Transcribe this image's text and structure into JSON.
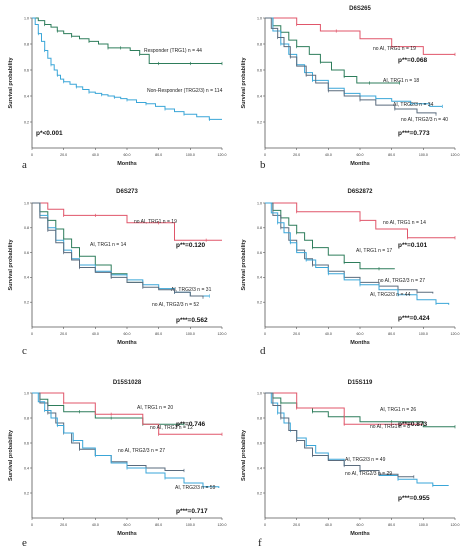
{
  "chart_data": [
    {
      "type": "line",
      "panel_letter": "a",
      "title": "",
      "xlabel": "Months",
      "ylabel": "Survival probability",
      "xlim": [
        0,
        120
      ],
      "ylim": [
        0,
        1.0
      ],
      "xticks": [
        "0",
        "20.0",
        "40.0",
        "60.0",
        "80.0",
        "100.0",
        "120.0"
      ],
      "yticks": [
        "0.2",
        "0.4",
        "0.6",
        "0.8",
        "1.0"
      ],
      "series": [
        {
          "name": "Responder (TRG1) n = 44",
          "color": "#2e7d5b",
          "x": [
            0,
            4,
            8,
            12,
            16,
            20,
            25,
            30,
            36,
            42,
            48,
            52,
            56,
            62,
            68,
            74,
            80,
            90,
            100,
            112,
            120
          ],
          "y": [
            1.0,
            0.98,
            0.95,
            0.93,
            0.9,
            0.88,
            0.86,
            0.84,
            0.82,
            0.8,
            0.77,
            0.77,
            0.77,
            0.75,
            0.72,
            0.65,
            0.65,
            0.65,
            0.65,
            0.65,
            0.65
          ]
        },
        {
          "name": "Non-Responder (TRG2/3) n = 114",
          "color": "#3aa6d8",
          "x": [
            0,
            2,
            4,
            6,
            8,
            10,
            12,
            14,
            16,
            18,
            20,
            24,
            28,
            32,
            36,
            40,
            44,
            48,
            52,
            56,
            60,
            66,
            72,
            78,
            84,
            90,
            96,
            104,
            112,
            120
          ],
          "y": [
            1.0,
            0.95,
            0.88,
            0.82,
            0.75,
            0.69,
            0.64,
            0.6,
            0.56,
            0.53,
            0.51,
            0.49,
            0.47,
            0.45,
            0.43,
            0.42,
            0.41,
            0.4,
            0.39,
            0.38,
            0.37,
            0.35,
            0.34,
            0.32,
            0.3,
            0.28,
            0.26,
            0.24,
            0.22,
            0.22
          ]
        }
      ],
      "annotations": [
        {
          "text": "p*<0.001"
        }
      ]
    },
    {
      "type": "line",
      "panel_letter": "b",
      "title": "D6S265",
      "xlabel": "Months",
      "ylabel": "Survival probability",
      "xlim": [
        0,
        120
      ],
      "ylim": [
        0,
        1.0
      ],
      "xticks": [
        "0",
        "20.0",
        "40.0",
        "60.0",
        "80.0",
        "100.0",
        "120.0"
      ],
      "yticks": [
        "0.2",
        "0.4",
        "0.6",
        "0.8",
        "1.0"
      ],
      "series": [
        {
          "name": "no AI, TRG1 n = 19",
          "color": "#e0566a",
          "x": [
            0,
            15,
            20,
            35,
            45,
            60,
            80,
            100,
            120
          ],
          "y": [
            1.0,
            1.0,
            0.95,
            0.9,
            0.9,
            0.84,
            0.78,
            0.72,
            0.72
          ]
        },
        {
          "name": "AI, TRG1 n = 18",
          "color": "#2e7d5b",
          "x": [
            0,
            5,
            10,
            15,
            20,
            28,
            35,
            42,
            50,
            58,
            66,
            75,
            85
          ],
          "y": [
            1.0,
            0.94,
            0.89,
            0.83,
            0.78,
            0.72,
            0.66,
            0.6,
            0.55,
            0.5,
            0.5,
            0.5,
            0.5
          ]
        },
        {
          "name": "AI, TRG2/3 n = 34",
          "color": "#3aa6d8",
          "x": [
            0,
            5,
            10,
            15,
            20,
            25,
            30,
            40,
            50,
            60,
            70,
            80,
            92,
            104,
            112
          ],
          "y": [
            1.0,
            0.9,
            0.8,
            0.72,
            0.64,
            0.58,
            0.52,
            0.46,
            0.42,
            0.4,
            0.38,
            0.36,
            0.34,
            0.32,
            0.32
          ]
        },
        {
          "name": "no AI, TRG2/3 n = 40",
          "color": "#5a6b7d",
          "x": [
            0,
            4,
            8,
            12,
            16,
            20,
            26,
            32,
            40,
            50,
            60,
            70,
            82,
            96,
            108
          ],
          "y": [
            1.0,
            0.92,
            0.85,
            0.78,
            0.7,
            0.63,
            0.56,
            0.5,
            0.44,
            0.4,
            0.37,
            0.33,
            0.3,
            0.27,
            0.26
          ]
        }
      ],
      "annotations": [
        {
          "text": "p**=0.068"
        },
        {
          "text": "p***=0.773"
        }
      ]
    },
    {
      "type": "line",
      "panel_letter": "c",
      "title": "D6S273",
      "xlabel": "Months",
      "ylabel": "Survival probability",
      "xlim": [
        0,
        120
      ],
      "ylim": [
        0,
        1.0
      ],
      "xticks": [
        "0",
        "20.0",
        "40.0",
        "60.0",
        "80.0",
        "100.0",
        "120.0"
      ],
      "yticks": [
        "0.2",
        "0.4",
        "0.6",
        "0.8",
        "1.0"
      ],
      "series": [
        {
          "name": "no AI, TRG1 n = 19",
          "color": "#e0566a",
          "x": [
            0,
            10,
            20,
            30,
            40,
            60,
            80,
            90,
            110,
            120
          ],
          "y": [
            1.0,
            0.95,
            0.9,
            0.9,
            0.9,
            0.84,
            0.84,
            0.7,
            0.7,
            0.7
          ]
        },
        {
          "name": "AI, TRG1 n = 14",
          "color": "#2e7d5b",
          "x": [
            0,
            5,
            10,
            15,
            20,
            25,
            30,
            40,
            50,
            60,
            70
          ],
          "y": [
            1.0,
            0.93,
            0.86,
            0.79,
            0.71,
            0.64,
            0.57,
            0.5,
            0.43,
            0.36,
            0.36
          ]
        },
        {
          "name": "AI, TRG2/3 n = 31",
          "color": "#3aa6d8",
          "x": [
            0,
            5,
            10,
            15,
            20,
            25,
            30,
            40,
            50,
            60,
            70,
            80,
            90,
            100,
            112
          ],
          "y": [
            1.0,
            0.9,
            0.8,
            0.7,
            0.62,
            0.55,
            0.5,
            0.45,
            0.42,
            0.38,
            0.34,
            0.31,
            0.28,
            0.25,
            0.25
          ]
        },
        {
          "name": "no AI, TRG2/3 n = 52",
          "color": "#5a6b7d",
          "x": [
            0,
            5,
            10,
            15,
            20,
            25,
            30,
            40,
            50,
            60,
            70,
            80,
            90,
            100,
            108
          ],
          "y": [
            1.0,
            0.88,
            0.78,
            0.68,
            0.6,
            0.54,
            0.48,
            0.44,
            0.4,
            0.36,
            0.32,
            0.3,
            0.28,
            0.25,
            0.24
          ]
        }
      ],
      "annotations": [
        {
          "text": "p**=0.120"
        },
        {
          "text": "p***=0.562"
        }
      ]
    },
    {
      "type": "line",
      "panel_letter": "d",
      "title": "D6S2872",
      "xlabel": "Months",
      "ylabel": "Survival probability",
      "xlim": [
        0,
        120
      ],
      "ylim": [
        0,
        1.0
      ],
      "xticks": [
        "0",
        "20.0",
        "40.0",
        "60.0",
        "80.0",
        "100.0",
        "120.0"
      ],
      "yticks": [
        "0.2",
        "0.4",
        "0.6",
        "0.8",
        "1.0"
      ],
      "series": [
        {
          "name": "no AI, TRG1 n = 14",
          "color": "#e0566a",
          "x": [
            0,
            10,
            20,
            40,
            60,
            70,
            90,
            110,
            120
          ],
          "y": [
            1.0,
            1.0,
            0.93,
            0.93,
            0.86,
            0.79,
            0.72,
            0.72,
            0.72
          ]
        },
        {
          "name": "AI, TRG1 n = 17",
          "color": "#2e7d5b",
          "x": [
            0,
            5,
            10,
            15,
            20,
            25,
            30,
            40,
            50,
            60,
            72,
            82
          ],
          "y": [
            1.0,
            0.94,
            0.88,
            0.82,
            0.76,
            0.7,
            0.64,
            0.58,
            0.52,
            0.47,
            0.47,
            0.47
          ]
        },
        {
          "name": "no AI, TRG2/3 n = 27",
          "color": "#5a6b7d",
          "x": [
            0,
            5,
            10,
            15,
            20,
            25,
            30,
            40,
            50,
            60,
            72,
            84,
            96,
            106
          ],
          "y": [
            1.0,
            0.9,
            0.8,
            0.7,
            0.62,
            0.55,
            0.5,
            0.45,
            0.4,
            0.36,
            0.33,
            0.3,
            0.28,
            0.27
          ]
        },
        {
          "name": "AI, TRG2/3 n = 44",
          "color": "#3aa6d8",
          "x": [
            0,
            4,
            8,
            12,
            16,
            20,
            26,
            32,
            40,
            50,
            60,
            72,
            84,
            96,
            108,
            116
          ],
          "y": [
            1.0,
            0.92,
            0.84,
            0.76,
            0.68,
            0.6,
            0.54,
            0.48,
            0.43,
            0.38,
            0.34,
            0.3,
            0.26,
            0.22,
            0.19,
            0.18
          ]
        }
      ],
      "annotations": [
        {
          "text": "p**=0.101"
        },
        {
          "text": "p***=0.424"
        }
      ]
    },
    {
      "type": "line",
      "panel_letter": "e",
      "title": "D15S1028",
      "xlabel": "Months",
      "ylabel": "Survival probability",
      "xlim": [
        0,
        120
      ],
      "ylim": [
        0,
        1.0
      ],
      "xticks": [
        "0",
        "20.0",
        "40.0",
        "60.0",
        "80.0",
        "100.0",
        "120.0"
      ],
      "yticks": [
        "0.2",
        "0.4",
        "0.6",
        "0.8",
        "1.0"
      ],
      "series": [
        {
          "name": "AI, TRG1 n = 20",
          "color": "#2e7d5b",
          "x": [
            0,
            5,
            10,
            20,
            30,
            40,
            50,
            60,
            70,
            80,
            96
          ],
          "y": [
            1.0,
            0.95,
            0.9,
            0.85,
            0.85,
            0.8,
            0.8,
            0.8,
            0.75,
            0.75,
            0.75
          ]
        },
        {
          "name": "no AI, TRG1 n = 12",
          "color": "#e0566a",
          "x": [
            0,
            15,
            20,
            40,
            50,
            70,
            80,
            100,
            120
          ],
          "y": [
            1.0,
            1.0,
            0.92,
            0.83,
            0.83,
            0.75,
            0.67,
            0.67,
            0.67
          ]
        },
        {
          "name": "no AI, TRG2/3 n = 27",
          "color": "#5a6b7d",
          "x": [
            0,
            5,
            10,
            15,
            20,
            25,
            30,
            40,
            50,
            60,
            72,
            84,
            96
          ],
          "y": [
            1.0,
            0.92,
            0.84,
            0.76,
            0.68,
            0.6,
            0.55,
            0.5,
            0.45,
            0.42,
            0.4,
            0.38,
            0.38
          ]
        },
        {
          "name": "AI, TRG2/3 n = 59",
          "color": "#3aa6d8",
          "x": [
            0,
            4,
            8,
            12,
            16,
            20,
            26,
            32,
            40,
            50,
            60,
            72,
            84,
            96,
            108,
            118
          ],
          "y": [
            1.0,
            0.93,
            0.86,
            0.8,
            0.74,
            0.68,
            0.62,
            0.56,
            0.5,
            0.44,
            0.4,
            0.36,
            0.32,
            0.28,
            0.25,
            0.24
          ]
        }
      ],
      "annotations": [
        {
          "text": "p**=0.746"
        },
        {
          "text": "p***=0.717"
        }
      ]
    },
    {
      "type": "line",
      "panel_letter": "f",
      "title": "D15S119",
      "xlabel": "Months",
      "ylabel": "Survival probability",
      "xlim": [
        0,
        120
      ],
      "ylim": [
        0,
        1.0
      ],
      "xticks": [
        "0",
        "20.0",
        "40.0",
        "60.0",
        "80.0",
        "100.0",
        "120.0"
      ],
      "yticks": [
        "0.2",
        "0.4",
        "0.6",
        "0.8",
        "1.0"
      ],
      "series": [
        {
          "name": "AI, TRG1 n = 26",
          "color": "#2e7d5b",
          "x": [
            0,
            5,
            10,
            20,
            30,
            40,
            50,
            60,
            80,
            100,
            120
          ],
          "y": [
            1.0,
            0.96,
            0.92,
            0.88,
            0.85,
            0.81,
            0.81,
            0.77,
            0.77,
            0.73,
            0.73
          ]
        },
        {
          "name": "no AI, TRG1 n = 8",
          "color": "#e0566a",
          "x": [
            0,
            10,
            20,
            40,
            50,
            60,
            80,
            100
          ],
          "y": [
            1.0,
            1.0,
            0.88,
            0.88,
            0.75,
            0.75,
            0.75,
            0.75
          ]
        },
        {
          "name": "AI, TRG2/3 n = 49",
          "color": "#3aa6d8",
          "x": [
            0,
            4,
            8,
            12,
            16,
            20,
            26,
            32,
            40,
            50,
            60,
            72,
            84,
            96,
            106,
            116
          ],
          "y": [
            1.0,
            0.92,
            0.84,
            0.76,
            0.7,
            0.64,
            0.58,
            0.52,
            0.47,
            0.42,
            0.38,
            0.34,
            0.31,
            0.28,
            0.26,
            0.26
          ]
        },
        {
          "name": "no AI, TRG2/3 n = 29",
          "color": "#5a6b7d",
          "x": [
            0,
            5,
            10,
            15,
            20,
            25,
            30,
            40,
            50,
            60,
            72,
            84,
            94
          ],
          "y": [
            1.0,
            0.9,
            0.8,
            0.7,
            0.62,
            0.56,
            0.5,
            0.46,
            0.42,
            0.38,
            0.35,
            0.33,
            0.33
          ]
        }
      ],
      "annotations": [
        {
          "text": "p**=0.873"
        },
        {
          "text": "p***=0.955"
        }
      ]
    }
  ]
}
